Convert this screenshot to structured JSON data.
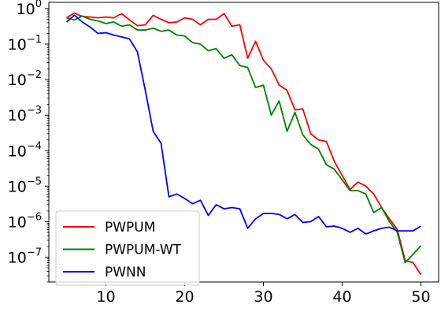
{
  "chart_data": {
    "type": "line",
    "title": "",
    "xlabel": "",
    "ylabel": "",
    "xlim": [
      2.75,
      52.25
    ],
    "ylim": [
      2e-08,
      1.5
    ],
    "yscale": "log",
    "grid": false,
    "legend_position": "lower-left",
    "x_ticks": [
      10,
      20,
      30,
      40,
      50
    ],
    "y_ticks": [
      {
        "value": 1,
        "base": "10",
        "exp": "0"
      },
      {
        "value": 0.1,
        "base": "10",
        "exp": "−1"
      },
      {
        "value": 0.01,
        "base": "10",
        "exp": "−2"
      },
      {
        "value": 0.001,
        "base": "10",
        "exp": "−3"
      },
      {
        "value": 0.0001,
        "base": "10",
        "exp": "−4"
      },
      {
        "value": 1e-05,
        "base": "10",
        "exp": "−5"
      },
      {
        "value": 1e-06,
        "base": "10",
        "exp": "−6"
      },
      {
        "value": 1e-07,
        "base": "10",
        "exp": "−7"
      }
    ],
    "x": [
      5,
      6,
      7,
      8,
      9,
      10,
      11,
      12,
      13,
      14,
      15,
      16,
      17,
      18,
      19,
      20,
      21,
      22,
      23,
      24,
      25,
      26,
      27,
      28,
      29,
      30,
      31,
      32,
      33,
      34,
      35,
      36,
      37,
      38,
      39,
      40,
      41,
      42,
      43,
      44,
      45,
      46,
      47,
      48,
      49,
      50
    ],
    "series": [
      {
        "name": "PWPUM",
        "color": "#ff0000",
        "values": [
          0.55,
          0.75,
          0.6,
          0.58,
          0.55,
          0.58,
          0.55,
          0.72,
          0.48,
          0.33,
          0.35,
          0.65,
          0.5,
          0.4,
          0.42,
          0.55,
          0.5,
          0.35,
          0.5,
          0.5,
          0.72,
          0.32,
          0.35,
          0.04,
          0.12,
          0.035,
          0.02,
          0.007,
          0.005,
          0.0014,
          0.0015,
          0.0003,
          0.0002,
          0.00018,
          5e-05,
          2e-05,
          8e-06,
          1.3e-05,
          1e-05,
          6e-06,
          2.5e-06,
          1.2e-06,
          6e-07,
          8e-08,
          7e-08,
          3.2e-08
        ]
      },
      {
        "name": "PWPUM-WT",
        "color": "#008000",
        "values": [
          0.55,
          0.48,
          0.62,
          0.5,
          0.45,
          0.38,
          0.42,
          0.32,
          0.35,
          0.25,
          0.25,
          0.28,
          0.23,
          0.25,
          0.18,
          0.17,
          0.11,
          0.1,
          0.065,
          0.075,
          0.04,
          0.05,
          0.025,
          0.022,
          0.006,
          0.007,
          0.001,
          0.0025,
          0.00035,
          0.0012,
          0.00028,
          0.00015,
          0.00011,
          4e-05,
          3e-05,
          1.5e-05,
          7.5e-06,
          7.5e-06,
          6e-06,
          1.8e-06,
          2.5e-06,
          1e-06,
          5e-07,
          7e-08,
          1.2e-07,
          2.1e-07
        ]
      },
      {
        "name": "PWNN",
        "color": "#0000ff",
        "values": [
          0.42,
          0.65,
          0.42,
          0.3,
          0.2,
          0.21,
          0.18,
          0.16,
          0.14,
          0.06,
          0.005,
          0.00035,
          0.00016,
          5e-06,
          6e-06,
          4.5e-06,
          3.2e-06,
          4e-06,
          1.5e-06,
          3e-06,
          2.3e-06,
          2.5e-06,
          2.3e-06,
          6.5e-07,
          1.2e-06,
          1.7e-06,
          1.7e-06,
          1.6e-06,
          1.2e-06,
          1.6e-06,
          9.5e-07,
          1e-06,
          1.4e-06,
          7.2e-07,
          7.5e-07,
          6.5e-07,
          5e-07,
          6.5e-07,
          4.5e-07,
          5.5e-07,
          6.5e-07,
          7e-07,
          5.5e-07,
          5.5e-07,
          5.5e-07,
          7.5e-07
        ]
      }
    ]
  }
}
